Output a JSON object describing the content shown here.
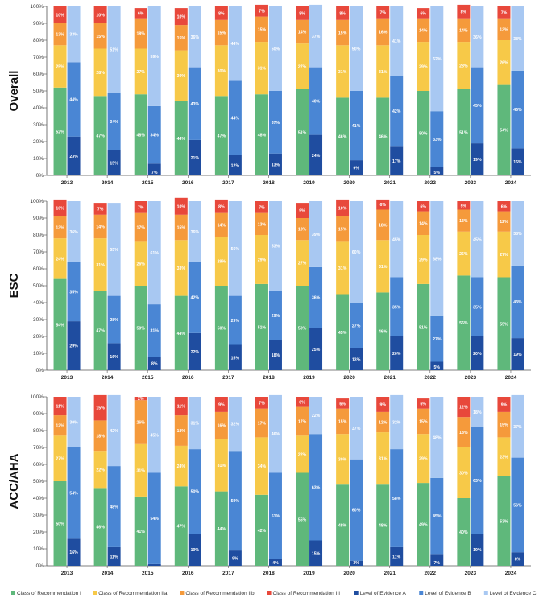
{
  "chart_data": {
    "type": "bar",
    "subtype": "grouped-stacked-percent",
    "categories": [
      "2013",
      "2014",
      "2015",
      "2016",
      "2017",
      "2018",
      "2019",
      "2020",
      "2021",
      "2022",
      "2023",
      "2024"
    ],
    "y_ticks": [
      "0%",
      "10%",
      "20%",
      "30%",
      "40%",
      "50%",
      "60%",
      "70%",
      "80%",
      "90%",
      "100%"
    ],
    "ylim": [
      0,
      100
    ],
    "colors": {
      "cor_i": "#5fb87b",
      "cor_iia": "#f7c948",
      "cor_iib": "#f59a3b",
      "cor_iii": "#e8483b",
      "loe_a": "#1f4da0",
      "loe_b": "#4a86d4",
      "loe_c": "#a8c8f2"
    },
    "legend": [
      {
        "key": "cor_i",
        "label": "Class of Recommendation I"
      },
      {
        "key": "cor_iia",
        "label": "Class of Recommendation IIa"
      },
      {
        "key": "cor_iib",
        "label": "Class of Recommendation IIb"
      },
      {
        "key": "cor_iii",
        "label": "Class of Recommendation III"
      },
      {
        "key": "loe_a",
        "label": "Level of Evidence A"
      },
      {
        "key": "loe_b",
        "label": "Level of Evidence B"
      },
      {
        "key": "loe_c",
        "label": "Level of Evidence C"
      }
    ],
    "panels": [
      {
        "title": "Overall",
        "cor": {
          "I": [
            52,
            47,
            48,
            44,
            47,
            48,
            51,
            46,
            46,
            50,
            51,
            54
          ],
          "IIa": [
            25,
            28,
            27,
            30,
            30,
            31,
            27,
            31,
            31,
            29,
            28,
            26
          ],
          "IIb": [
            13,
            15,
            18,
            15,
            15,
            15,
            14,
            15,
            16,
            14,
            14,
            13
          ],
          "III": [
            10,
            10,
            6,
            10,
            8,
            7,
            8,
            8,
            7,
            6,
            8,
            7
          ]
        },
        "loe": {
          "A": [
            23,
            15,
            7,
            21,
            12,
            13,
            24,
            9,
            17,
            5,
            19,
            16
          ],
          "B": [
            44,
            34,
            34,
            43,
            44,
            37,
            40,
            41,
            42,
            33,
            45,
            46
          ],
          "C": [
            33,
            51,
            59,
            36,
            44,
            50,
            37,
            50,
            41,
            62,
            36,
            38
          ]
        }
      },
      {
        "title": "ESC",
        "cor": {
          "I": [
            54,
            47,
            50,
            44,
            50,
            51,
            50,
            45,
            46,
            51,
            56,
            55
          ],
          "IIa": [
            24,
            31,
            26,
            33,
            29,
            29,
            27,
            31,
            31,
            29,
            26,
            27
          ],
          "IIb": [
            13,
            14,
            17,
            15,
            14,
            13,
            13,
            15,
            18,
            14,
            13,
            12
          ],
          "III": [
            10,
            7,
            7,
            10,
            8,
            7,
            9,
            10,
            6,
            6,
            5,
            6
          ]
        },
        "loe": {
          "A": [
            29,
            16,
            8,
            22,
            15,
            18,
            25,
            13,
            20,
            5,
            20,
            19
          ],
          "B": [
            35,
            28,
            31,
            42,
            29,
            29,
            36,
            27,
            35,
            27,
            35,
            43
          ],
          "C": [
            36,
            55,
            61,
            36,
            56,
            53,
            39,
            60,
            45,
            68,
            45,
            38
          ]
        }
      },
      {
        "title": "ACC/AHA",
        "cor": {
          "I": [
            50,
            46,
            41,
            47,
            44,
            42,
            55,
            48,
            48,
            49,
            40,
            53
          ],
          "IIa": [
            27,
            22,
            31,
            24,
            31,
            34,
            22,
            30,
            31,
            29,
            30,
            23
          ],
          "IIb": [
            12,
            18,
            26,
            18,
            16,
            17,
            17,
            15,
            12,
            15,
            18,
            15
          ],
          "III": [
            11,
            15,
            2,
            11,
            9,
            7,
            6,
            6,
            9,
            6,
            12,
            9
          ]
        },
        "loe": {
          "A": [
            16,
            11,
            1,
            19,
            9,
            4,
            15,
            3,
            11,
            7,
            19,
            8
          ],
          "B": [
            54,
            48,
            54,
            50,
            59,
            51,
            63,
            60,
            58,
            45,
            63,
            56
          ],
          "C": [
            30,
            42,
            45,
            31,
            32,
            46,
            22,
            37,
            32,
            48,
            18,
            37
          ]
        }
      }
    ]
  }
}
